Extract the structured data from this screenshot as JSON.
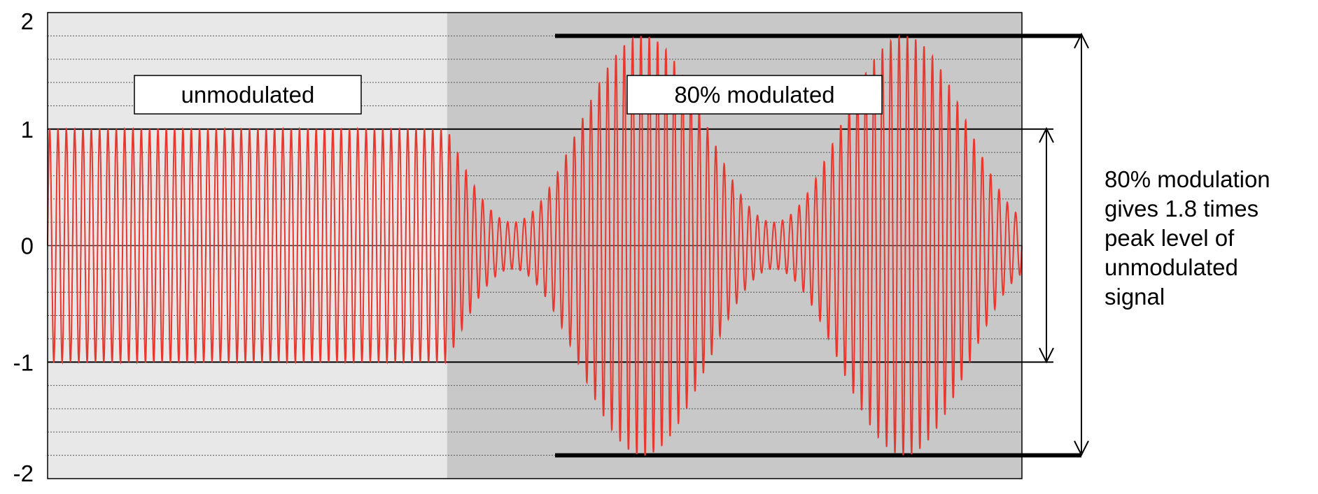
{
  "chart_data": {
    "type": "line",
    "ylim": [
      -2,
      2
    ],
    "yticks": [
      2,
      1,
      0,
      -1,
      -2
    ],
    "grid": "dotted horizontal at 0.2 steps",
    "regions": [
      {
        "name": "unmodulated",
        "x_start": 0.0,
        "x_end": 0.41,
        "fill": "#e8e8e8"
      },
      {
        "name": "80% modulated",
        "x_start": 0.41,
        "x_end": 1.0,
        "fill": "#c8c8c8"
      }
    ],
    "reference_lines": [
      1,
      -1,
      1.8,
      -1.8
    ],
    "series": [
      {
        "color": "#e8372e",
        "segments": [
          {
            "description_type": "constant-envelope sine",
            "amplitude": 1.0,
            "x_start": 0.0,
            "x_end": 0.41
          },
          {
            "description_type": "amplitude-modulated sine",
            "carrier_amplitude": 1.0,
            "modulation_depth": 0.8,
            "envelope_min": 0.2,
            "envelope_max": 1.8,
            "x_start": 0.41,
            "x_end": 1.0
          }
        ]
      }
    ],
    "annotations": [
      {
        "text": "unmodulated"
      },
      {
        "text": "80% modulated"
      }
    ]
  },
  "annotation_lines": [
    "80% modulation",
    "gives 1.8 times",
    "peak level of",
    "unmodulated",
    "signal"
  ],
  "colors": {
    "signal": "#e8372e",
    "unmodulated_bg": "#e8e8e8",
    "modulated_bg": "#c8c8c8",
    "axis": "#000000"
  }
}
